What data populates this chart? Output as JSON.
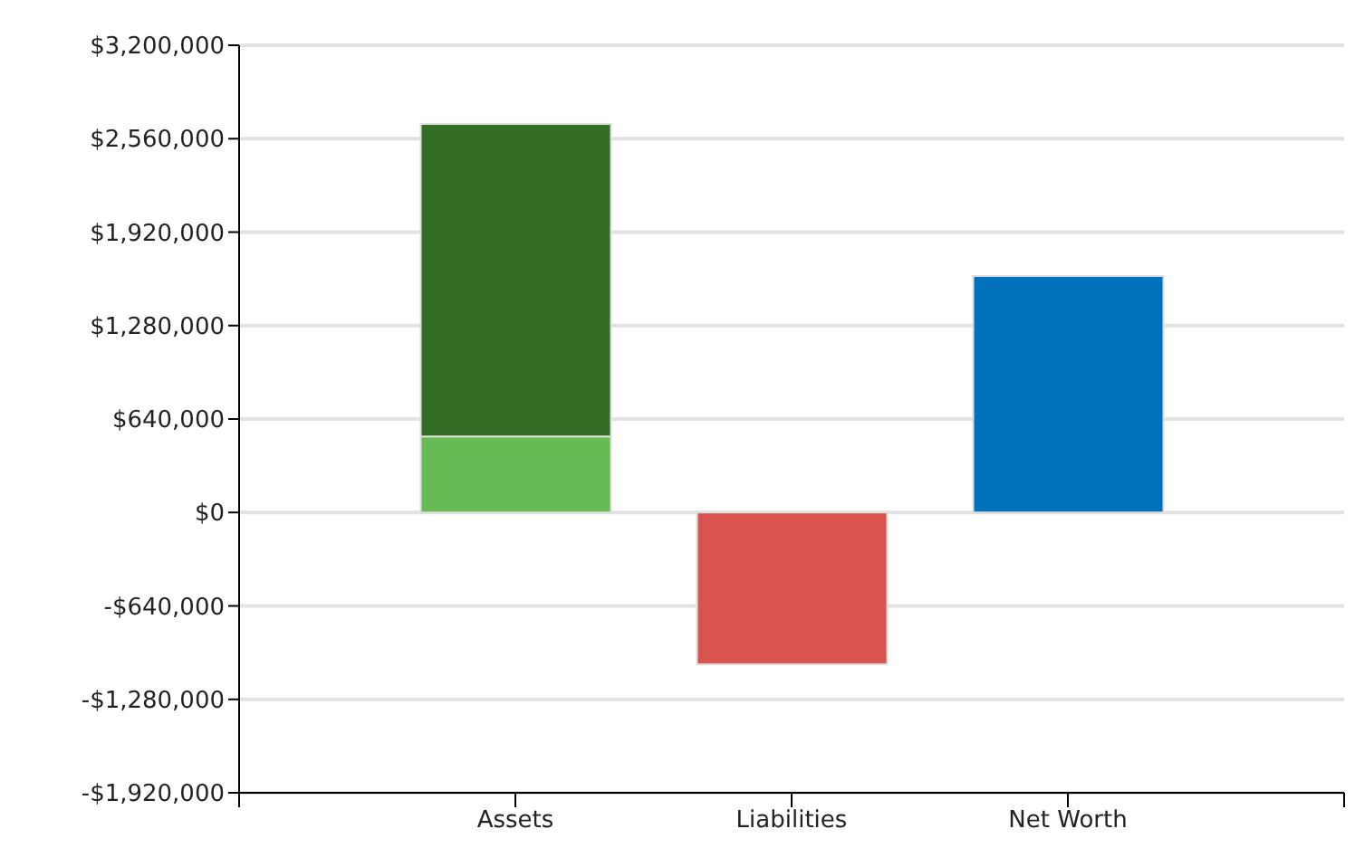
{
  "chart_data": {
    "type": "bar",
    "stacked": true,
    "categories": [
      "Assets",
      "Liabilities",
      "Net Worth"
    ],
    "series": [
      {
        "colors": [
          "#66bb55",
          "#d9534f",
          "#0072bc"
        ],
        "values": [
          520000,
          -1040000,
          1620000
        ]
      },
      {
        "color": "#346e26",
        "values": [
          2140000,
          null,
          null
        ]
      }
    ],
    "ylim": [
      -1920000,
      3200000
    ],
    "yticks": [
      {
        "value": -1920000,
        "label": "-$1,920,000"
      },
      {
        "value": -1280000,
        "label": "-$1,280,000"
      },
      {
        "value": -640000,
        "label": "-$640,000"
      },
      {
        "value": 0,
        "label": "$0"
      },
      {
        "value": 640000,
        "label": "$640,000"
      },
      {
        "value": 1280000,
        "label": "$1,280,000"
      },
      {
        "value": 1920000,
        "label": "$1,920,000"
      },
      {
        "value": 2560000,
        "label": "$2,560,000"
      },
      {
        "value": 3200000,
        "label": "$3,200,000"
      }
    ],
    "grid": "y"
  }
}
